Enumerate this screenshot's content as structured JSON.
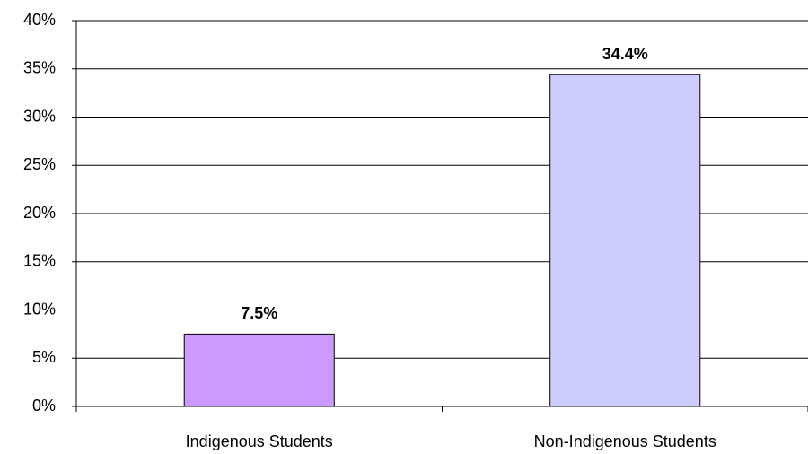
{
  "chart_data": {
    "type": "bar",
    "categories": [
      "Indigenous Students",
      "Non-Indigenous Students"
    ],
    "values": [
      7.5,
      34.4
    ],
    "value_labels": [
      "7.5%",
      "34.4%"
    ],
    "colors": [
      "#cc99ff",
      "#ccccff"
    ],
    "ylim": [
      0,
      40
    ],
    "yticks": [
      {
        "value": 0,
        "label": "0%"
      },
      {
        "value": 5,
        "label": "5%"
      },
      {
        "value": 10,
        "label": "10%"
      },
      {
        "value": 15,
        "label": "15%"
      },
      {
        "value": 20,
        "label": "20%"
      },
      {
        "value": 25,
        "label": "25%"
      },
      {
        "value": 30,
        "label": "30%"
      },
      {
        "value": 35,
        "label": "35%"
      },
      {
        "value": 40,
        "label": "40%"
      }
    ],
    "grid": true
  }
}
